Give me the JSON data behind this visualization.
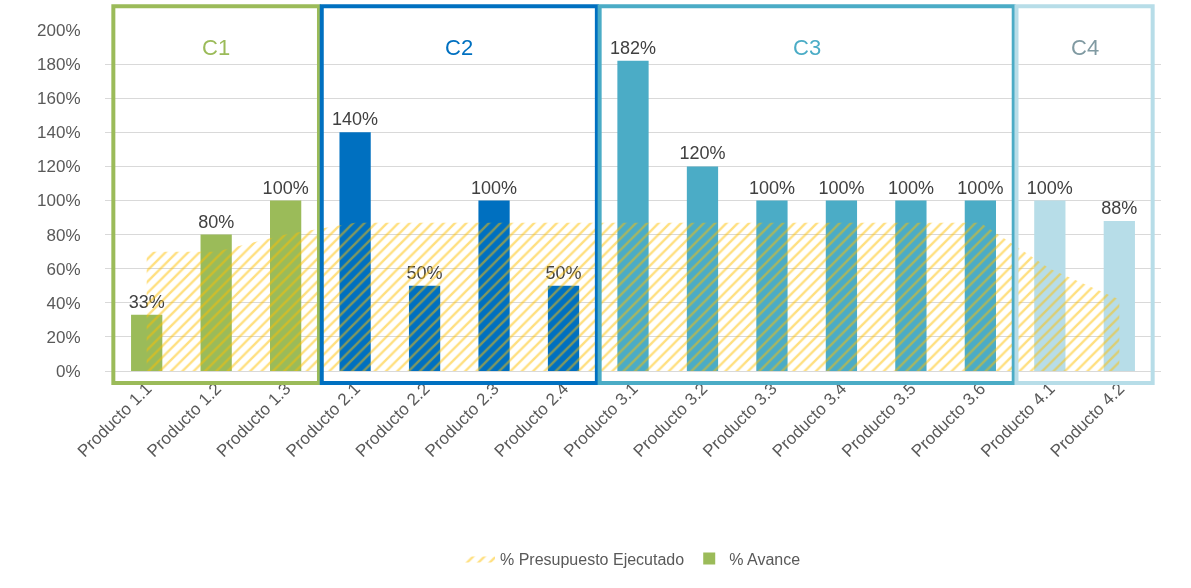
{
  "chart_data": {
    "type": "bar",
    "categories": [
      "Producto 1.1",
      "Producto 1.2",
      "Producto 1.3",
      "Producto 2.1",
      "Producto 2.2",
      "Producto 2.3",
      "Producto 2.4",
      "Producto 3.1",
      "Producto 3.2",
      "Producto 3.3",
      "Producto 3.4",
      "Producto 3.5",
      "Producto 3.6",
      "Producto 4.1",
      "Producto 4.2"
    ],
    "series": [
      {
        "name": "% Presupuesto Ejecutado",
        "type": "area",
        "color": "#ffc000",
        "values": [
          70,
          70,
          80,
          87,
          87,
          87,
          87,
          87,
          87,
          87,
          87,
          87,
          87,
          60,
          42
        ]
      },
      {
        "name": "% Avance",
        "color": "#4f81bd",
        "colors": [
          "#9bbb59",
          "#9bbb59",
          "#9bbb59",
          "#0070c0",
          "#0070c0",
          "#0070c0",
          "#0070c0",
          "#4bacc6",
          "#4bacc6",
          "#4bacc6",
          "#4bacc6",
          "#4bacc6",
          "#4bacc6",
          "#b7dde8",
          "#b7dde8"
        ],
        "values": [
          33,
          80,
          100,
          140,
          50,
          100,
          50,
          182,
          120,
          100,
          100,
          100,
          100,
          100,
          88
        ],
        "value_labels": [
          "33%",
          "80%",
          "100%",
          "140%",
          "50%",
          "100%",
          "50%",
          "182%",
          "120%",
          "100%",
          "100%",
          "100%",
          "100%",
          "100%",
          "88%"
        ]
      }
    ],
    "ylim": [
      0,
      200
    ],
    "yticks": [
      {
        "value": 0,
        "label": "0%"
      },
      {
        "value": 20,
        "label": "20%"
      },
      {
        "value": 40,
        "label": "40%"
      },
      {
        "value": 60,
        "label": "60%"
      },
      {
        "value": 80,
        "label": "80%"
      },
      {
        "value": 100,
        "label": "100%"
      },
      {
        "value": 120,
        "label": "120%"
      },
      {
        "value": 140,
        "label": "140%"
      },
      {
        "value": 160,
        "label": "160%"
      },
      {
        "value": 180,
        "label": "180%"
      },
      {
        "value": 200,
        "label": "200%"
      }
    ],
    "annotations": [
      "C1",
      "C2",
      "C3",
      "C4"
    ],
    "grid": "y",
    "legend": "bottom"
  }
}
